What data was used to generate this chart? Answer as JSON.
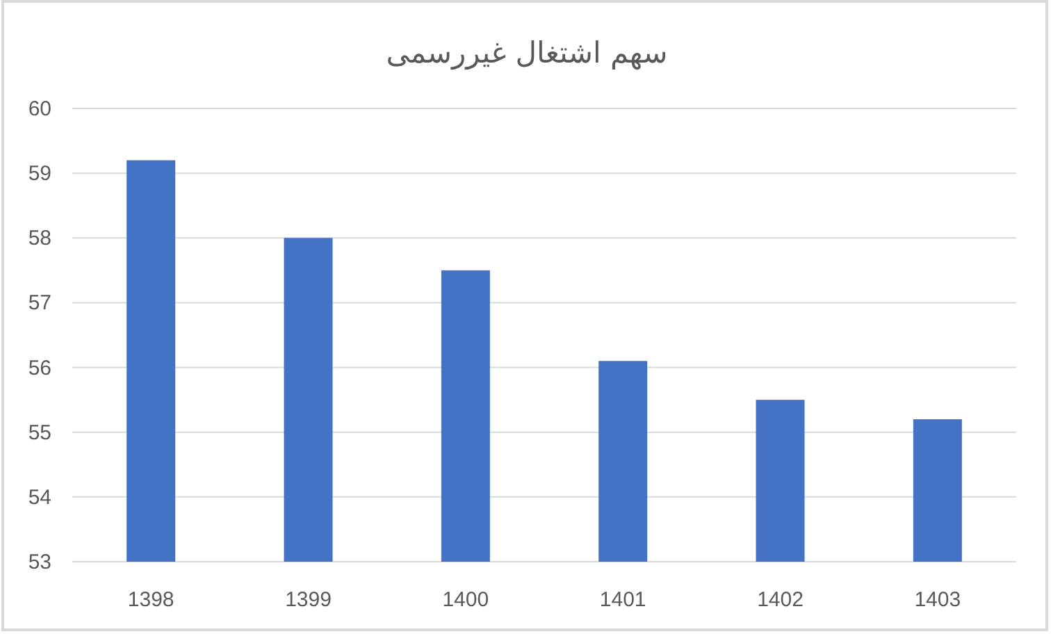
{
  "chart_data": {
    "type": "bar",
    "title": "سهم اشتغال غیررسمی",
    "categories": [
      "1398",
      "1399",
      "1400",
      "1401",
      "1402",
      "1403"
    ],
    "values": [
      59.2,
      58.0,
      57.5,
      56.1,
      55.5,
      55.2
    ],
    "color": "#4472c4",
    "ylim": [
      53,
      60
    ],
    "yticks": [
      53,
      54,
      55,
      56,
      57,
      58,
      59,
      60
    ],
    "grid": "y"
  }
}
